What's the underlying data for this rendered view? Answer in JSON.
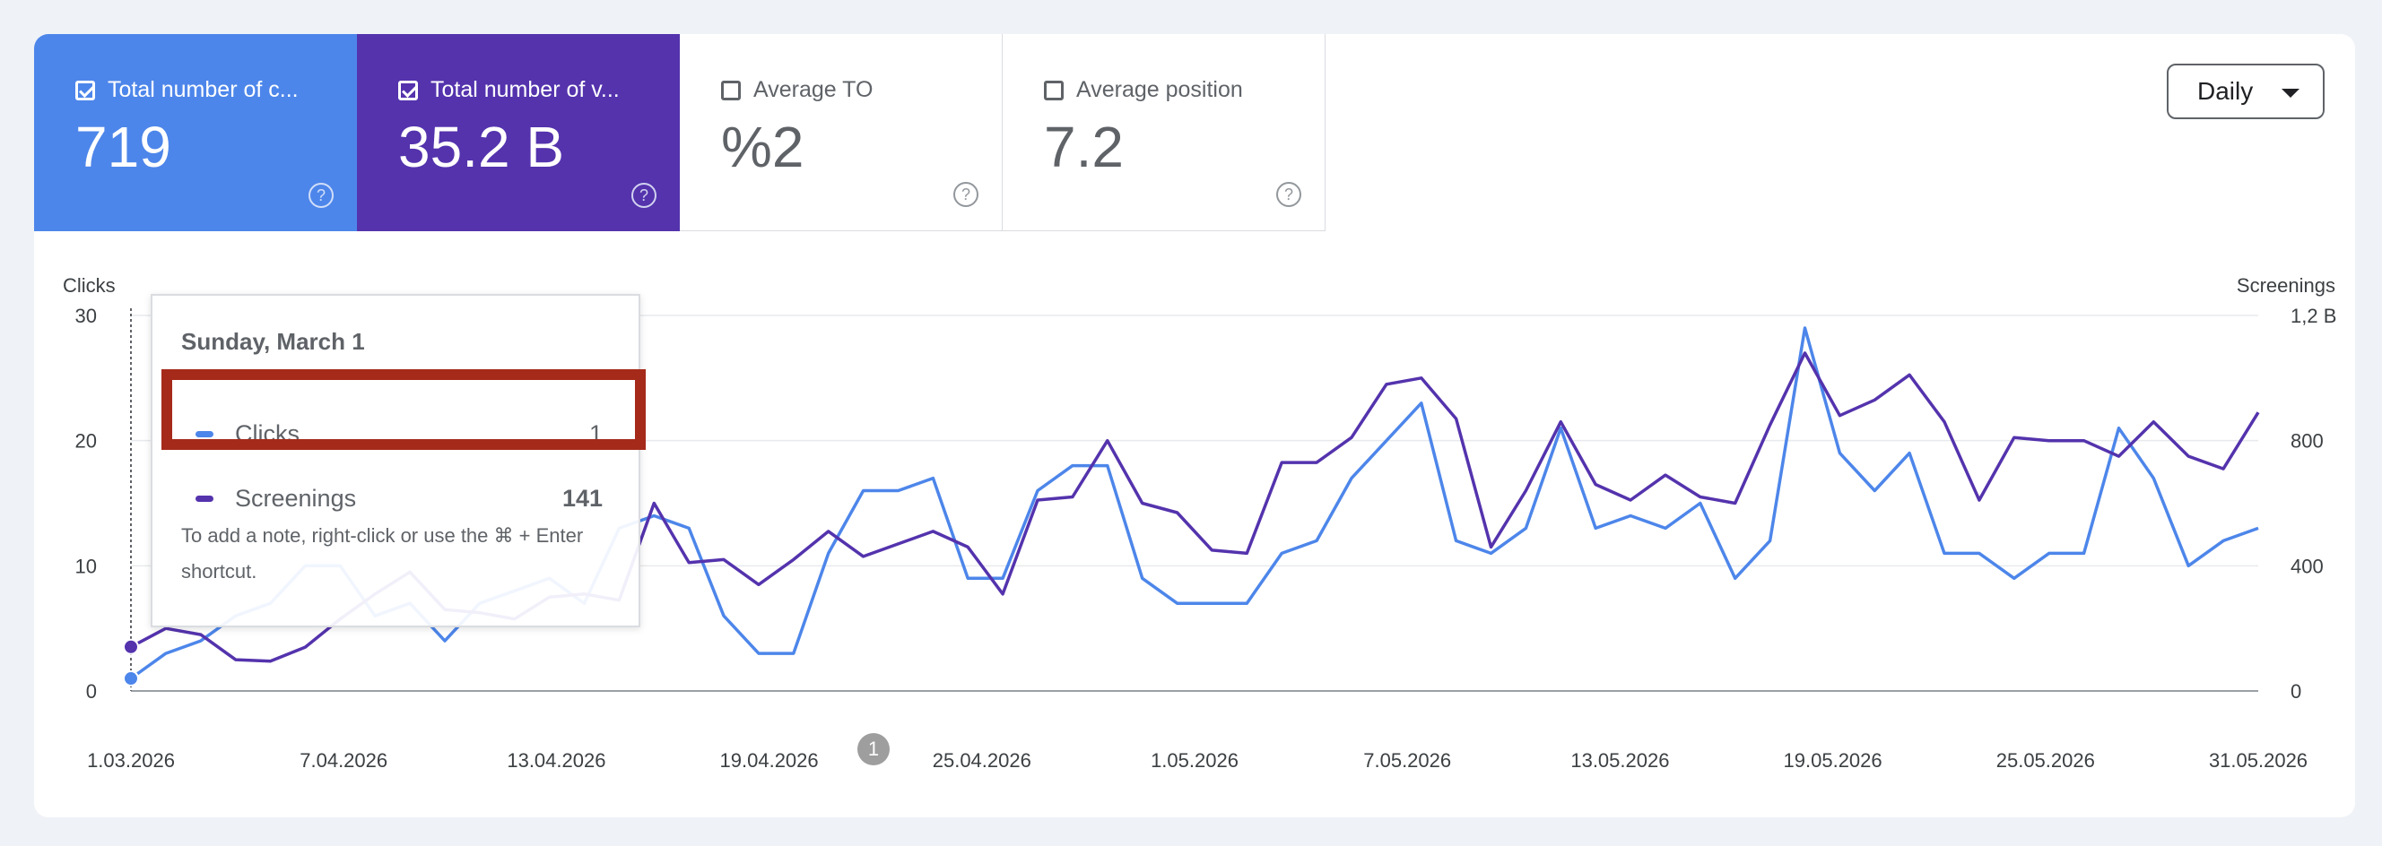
{
  "tiles": [
    {
      "label": "Total number of c...",
      "value": "719",
      "checked": true,
      "variant": "clicks"
    },
    {
      "label": "Total number of v...",
      "value": "35.2 B",
      "checked": true,
      "variant": "views"
    },
    {
      "label": "Average TO",
      "value": "%2",
      "checked": false,
      "variant": "off"
    },
    {
      "label": "Average position",
      "value": "7.2",
      "checked": false,
      "variant": "off"
    }
  ],
  "period_select": {
    "value": "Daily"
  },
  "help_icon": "?",
  "tooltip": {
    "date": "Sunday, March 1",
    "rows": [
      {
        "name": "Clicks",
        "value": "1",
        "color": "#4d86ea"
      },
      {
        "name": "Screenings",
        "value": "141",
        "color": "#5433ad"
      }
    ],
    "note": "To add a note, right-click or use the ⌘ + Enter shortcut."
  },
  "annotation_marker": "1",
  "colors": {
    "clicks": "#4d86ea",
    "screenings": "#5433ad",
    "highlight": "#a52a1a"
  },
  "chart_data": {
    "type": "line",
    "ylabel_left": "Clicks",
    "ylabel_right": "Screenings",
    "left_ticks": [
      "0",
      "10",
      "20",
      "30"
    ],
    "right_ticks": [
      "0",
      "400",
      "800",
      "1,2 B"
    ],
    "ylim_left": [
      0,
      30
    ],
    "ylim_right": [
      0,
      1200
    ],
    "x_tick_labels": [
      "1.03.2026",
      "7.04.2026",
      "13.04.2026",
      "19.04.2026",
      "25.04.2026",
      "1.05.2026",
      "7.05.2026",
      "13.05.2026",
      "19.05.2026",
      "25.05.2026",
      "31.05.2026"
    ],
    "grid": true,
    "series": [
      {
        "name": "Clicks",
        "axis": "left",
        "values": [
          1,
          3,
          4,
          6,
          7,
          10,
          10,
          6,
          7,
          4,
          7,
          8,
          9,
          7,
          13,
          14,
          13,
          6,
          3,
          3,
          11,
          16,
          16,
          17,
          9,
          9,
          16,
          18,
          18,
          9,
          7,
          7,
          7,
          11,
          12,
          17,
          20,
          23,
          12,
          11,
          13,
          21,
          13,
          14,
          13,
          15,
          9,
          12,
          29,
          19,
          16,
          19,
          11,
          11,
          9,
          11,
          11,
          21,
          17,
          10,
          12,
          13
        ]
      },
      {
        "name": "Screenings",
        "axis": "right",
        "values": [
          141,
          200,
          180,
          100,
          95,
          140,
          230,
          310,
          380,
          260,
          250,
          230,
          300,
          310,
          290,
          600,
          410,
          420,
          340,
          420,
          510,
          430,
          470,
          510,
          460,
          310,
          610,
          620,
          800,
          600,
          570,
          450,
          440,
          730,
          730,
          810,
          980,
          1000,
          870,
          460,
          640,
          860,
          660,
          610,
          690,
          620,
          600,
          850,
          1080,
          880,
          930,
          1010,
          860,
          610,
          810,
          800,
          800,
          750,
          860,
          750,
          710,
          890
        ]
      }
    ]
  }
}
